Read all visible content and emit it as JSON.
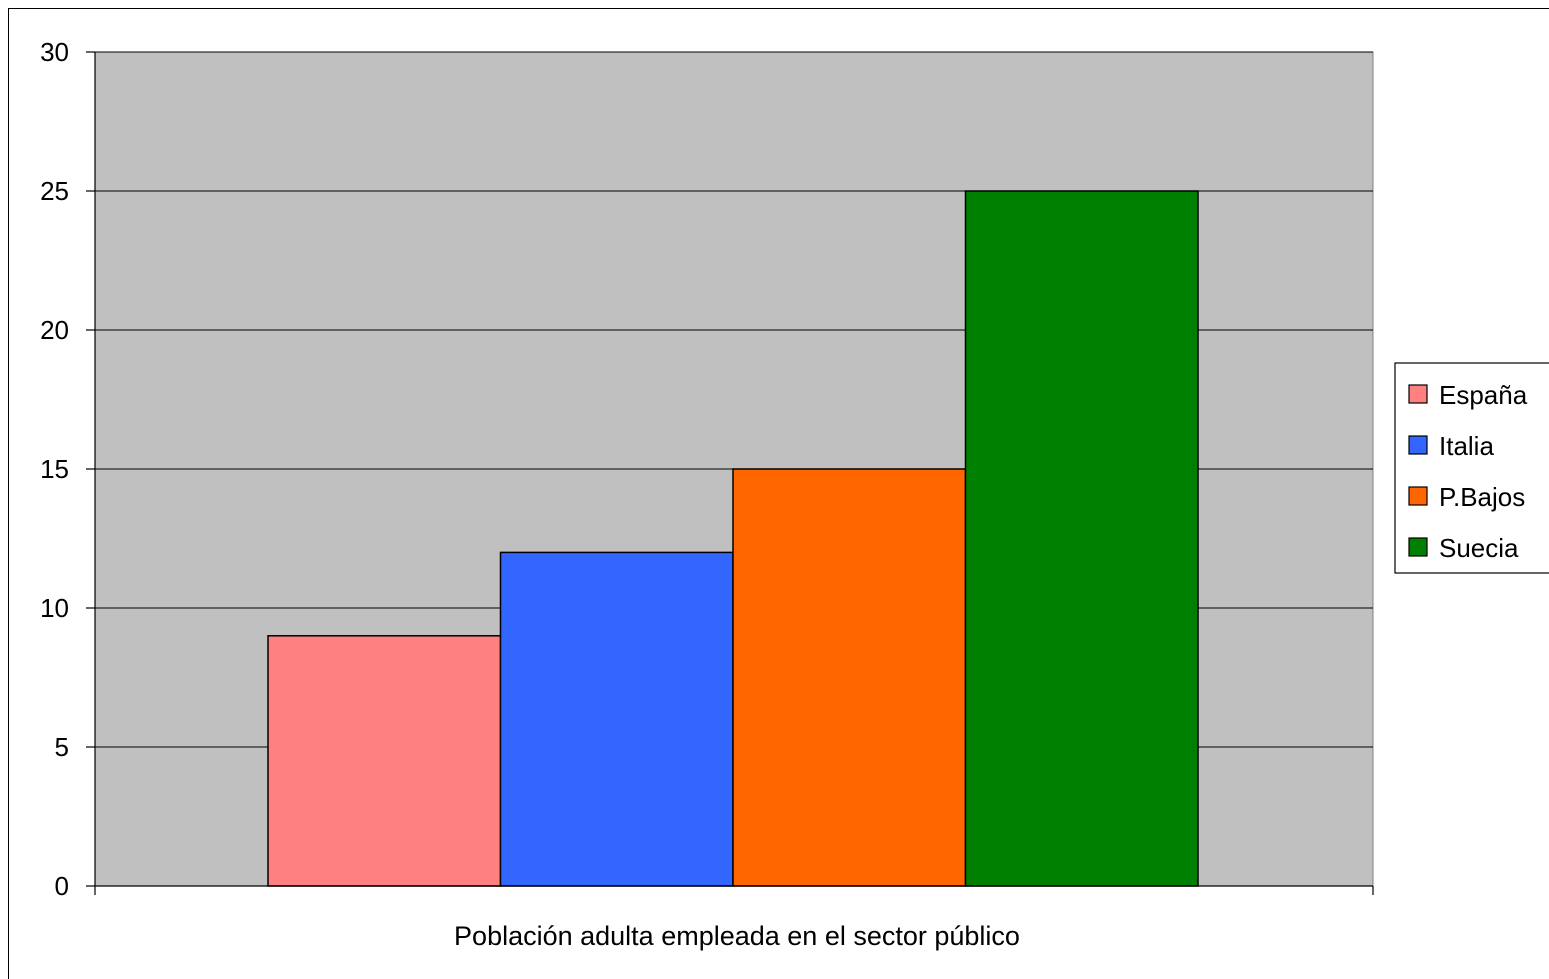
{
  "chart_data": {
    "type": "bar",
    "title": "",
    "xlabel": "Población adulta empleada en el sector público",
    "ylabel": "",
    "ylim": [
      0,
      30
    ],
    "yticks": [
      0,
      5,
      10,
      15,
      20,
      25,
      30
    ],
    "grid": true,
    "legend_position": "right",
    "plot_background": "#c0c0c0",
    "series": [
      {
        "name": "España",
        "values": [
          9
        ],
        "color": "#ff8080"
      },
      {
        "name": "Italia",
        "values": [
          12
        ],
        "color": "#3366ff"
      },
      {
        "name": "P.Bajos",
        "values": [
          15
        ],
        "color": "#ff6600"
      },
      {
        "name": "Suecia",
        "values": [
          25
        ],
        "color": "#008000"
      }
    ]
  }
}
